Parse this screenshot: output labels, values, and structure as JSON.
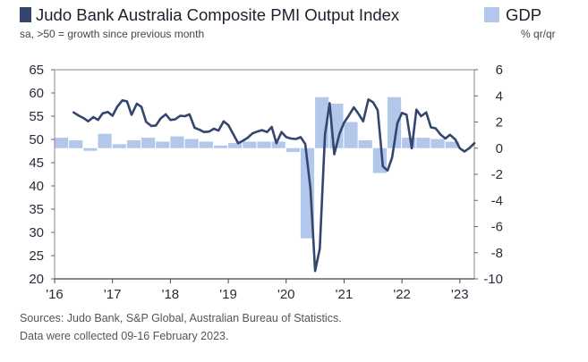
{
  "chart_data": {
    "type": "bar+line",
    "title": "Judo Bank Australia Composite PMI Output Index",
    "subtitle": "sa, >50 = growth since previous month",
    "legend": {
      "pmi_label": "Judo Bank Australia Composite PMI Output Index",
      "gdp_label": "GDP",
      "gdp_unit": "% qr/qr"
    },
    "left_axis": {
      "ylim": [
        20,
        65
      ],
      "ticks": [
        "65",
        "60",
        "55",
        "50",
        "45",
        "40",
        "35",
        "30",
        "25",
        "20"
      ]
    },
    "right_axis": {
      "ylim": [
        -10,
        6
      ],
      "ticks": [
        "6",
        "4",
        "2",
        "0",
        "-2",
        "-4",
        "-6",
        "-8",
        "-10"
      ]
    },
    "x_axis": {
      "xlim": [
        2016,
        2023.25
      ],
      "ticks": [
        {
          "value": 2016,
          "label": "'16"
        },
        {
          "value": 2017,
          "label": "'17"
        },
        {
          "value": 2018,
          "label": "'18"
        },
        {
          "value": 2019,
          "label": "'19"
        },
        {
          "value": 2020,
          "label": "'20"
        },
        {
          "value": 2021,
          "label": "'21"
        },
        {
          "value": 2022,
          "label": "'22"
        },
        {
          "value": 2023,
          "label": "'23"
        }
      ]
    },
    "series": [
      {
        "name": "GDP",
        "axis": "right",
        "kind": "bar",
        "color": "#b3c7ea",
        "points": [
          {
            "x": 2016.0,
            "y": 0.8
          },
          {
            "x": 2016.25,
            "y": 0.6
          },
          {
            "x": 2016.5,
            "y": -0.2
          },
          {
            "x": 2016.75,
            "y": 1.1
          },
          {
            "x": 2017.0,
            "y": 0.3
          },
          {
            "x": 2017.25,
            "y": 0.6
          },
          {
            "x": 2017.5,
            "y": 0.8
          },
          {
            "x": 2017.75,
            "y": 0.5
          },
          {
            "x": 2018.0,
            "y": 0.9
          },
          {
            "x": 2018.25,
            "y": 0.7
          },
          {
            "x": 2018.5,
            "y": 0.5
          },
          {
            "x": 2018.75,
            "y": 0.2
          },
          {
            "x": 2019.0,
            "y": 0.4
          },
          {
            "x": 2019.25,
            "y": 0.5
          },
          {
            "x": 2019.5,
            "y": 0.5
          },
          {
            "x": 2019.75,
            "y": 0.5
          },
          {
            "x": 2020.0,
            "y": -0.3
          },
          {
            "x": 2020.25,
            "y": -6.9
          },
          {
            "x": 2020.5,
            "y": 3.9
          },
          {
            "x": 2020.75,
            "y": 3.4
          },
          {
            "x": 2021.0,
            "y": 2.0
          },
          {
            "x": 2021.25,
            "y": 0.6
          },
          {
            "x": 2021.5,
            "y": -1.9
          },
          {
            "x": 2021.75,
            "y": 3.9
          },
          {
            "x": 2022.0,
            "y": 0.8
          },
          {
            "x": 2022.25,
            "y": 0.8
          },
          {
            "x": 2022.5,
            "y": 0.7
          },
          {
            "x": 2022.75,
            "y": 0.5
          }
        ]
      },
      {
        "name": "Composite PMI Output Index",
        "axis": "left",
        "kind": "line",
        "color": "#34466e",
        "points": [
          {
            "x": 2016.33,
            "y": 55.8
          },
          {
            "x": 2016.42,
            "y": 55.1
          },
          {
            "x": 2016.5,
            "y": 54.6
          },
          {
            "x": 2016.58,
            "y": 53.9
          },
          {
            "x": 2016.67,
            "y": 54.8
          },
          {
            "x": 2016.75,
            "y": 54.2
          },
          {
            "x": 2016.83,
            "y": 55.6
          },
          {
            "x": 2016.92,
            "y": 55.9
          },
          {
            "x": 2017.0,
            "y": 55.1
          },
          {
            "x": 2017.08,
            "y": 57.0
          },
          {
            "x": 2017.17,
            "y": 58.4
          },
          {
            "x": 2017.25,
            "y": 58.2
          },
          {
            "x": 2017.33,
            "y": 55.3
          },
          {
            "x": 2017.42,
            "y": 57.7
          },
          {
            "x": 2017.5,
            "y": 57.0
          },
          {
            "x": 2017.58,
            "y": 53.8
          },
          {
            "x": 2017.67,
            "y": 52.9
          },
          {
            "x": 2017.75,
            "y": 53.0
          },
          {
            "x": 2017.83,
            "y": 54.5
          },
          {
            "x": 2017.92,
            "y": 55.4
          },
          {
            "x": 2018.0,
            "y": 54.2
          },
          {
            "x": 2018.08,
            "y": 54.3
          },
          {
            "x": 2018.17,
            "y": 55.1
          },
          {
            "x": 2018.25,
            "y": 55.0
          },
          {
            "x": 2018.33,
            "y": 55.4
          },
          {
            "x": 2018.42,
            "y": 52.5
          },
          {
            "x": 2018.5,
            "y": 52.1
          },
          {
            "x": 2018.58,
            "y": 51.6
          },
          {
            "x": 2018.67,
            "y": 51.7
          },
          {
            "x": 2018.75,
            "y": 52.3
          },
          {
            "x": 2018.83,
            "y": 51.9
          },
          {
            "x": 2018.92,
            "y": 53.9
          },
          {
            "x": 2019.0,
            "y": 53.1
          },
          {
            "x": 2019.08,
            "y": 51.3
          },
          {
            "x": 2019.17,
            "y": 49.2
          },
          {
            "x": 2019.25,
            "y": 49.7
          },
          {
            "x": 2019.33,
            "y": 50.3
          },
          {
            "x": 2019.42,
            "y": 51.3
          },
          {
            "x": 2019.5,
            "y": 51.7
          },
          {
            "x": 2019.58,
            "y": 52.0
          },
          {
            "x": 2019.67,
            "y": 51.6
          },
          {
            "x": 2019.75,
            "y": 52.7
          },
          {
            "x": 2019.83,
            "y": 49.2
          },
          {
            "x": 2019.92,
            "y": 51.6
          },
          {
            "x": 2020.0,
            "y": 50.5
          },
          {
            "x": 2020.08,
            "y": 50.2
          },
          {
            "x": 2020.17,
            "y": 50.1
          },
          {
            "x": 2020.25,
            "y": 50.5
          },
          {
            "x": 2020.33,
            "y": 49.0
          },
          {
            "x": 2020.42,
            "y": 39.4
          },
          {
            "x": 2020.5,
            "y": 21.7
          },
          {
            "x": 2020.58,
            "y": 26.5
          },
          {
            "x": 2020.67,
            "y": 51.0
          },
          {
            "x": 2020.75,
            "y": 57.8
          },
          {
            "x": 2020.83,
            "y": 46.8
          },
          {
            "x": 2020.92,
            "y": 51.2
          },
          {
            "x": 2021.0,
            "y": 53.6
          },
          {
            "x": 2021.08,
            "y": 55.1
          },
          {
            "x": 2021.17,
            "y": 56.9
          },
          {
            "x": 2021.25,
            "y": 55.5
          },
          {
            "x": 2021.33,
            "y": 53.9
          },
          {
            "x": 2021.42,
            "y": 58.6
          },
          {
            "x": 2021.5,
            "y": 58.0
          },
          {
            "x": 2021.58,
            "y": 56.3
          },
          {
            "x": 2021.67,
            "y": 44.2
          },
          {
            "x": 2021.75,
            "y": 43.3
          },
          {
            "x": 2021.83,
            "y": 46.1
          },
          {
            "x": 2021.92,
            "y": 53.5
          },
          {
            "x": 2022.0,
            "y": 55.7
          },
          {
            "x": 2022.08,
            "y": 55.3
          },
          {
            "x": 2022.17,
            "y": 48.1
          },
          {
            "x": 2022.25,
            "y": 56.4
          },
          {
            "x": 2022.33,
            "y": 55.0
          },
          {
            "x": 2022.42,
            "y": 55.8
          },
          {
            "x": 2022.5,
            "y": 52.6
          },
          {
            "x": 2022.58,
            "y": 52.4
          },
          {
            "x": 2022.67,
            "y": 51.0
          },
          {
            "x": 2022.75,
            "y": 50.2
          },
          {
            "x": 2022.83,
            "y": 51.0
          },
          {
            "x": 2022.92,
            "y": 50.0
          },
          {
            "x": 2023.0,
            "y": 48.1
          },
          {
            "x": 2023.08,
            "y": 47.4
          },
          {
            "x": 2023.17,
            "y": 48.2
          },
          {
            "x": 2023.25,
            "y": 49.2
          }
        ]
      }
    ],
    "sources": "Sources: Judo Bank, S&P Global, Australian Bureau of Statistics.",
    "note": "Data were collected 09-16 February 2023.",
    "grid": false
  }
}
